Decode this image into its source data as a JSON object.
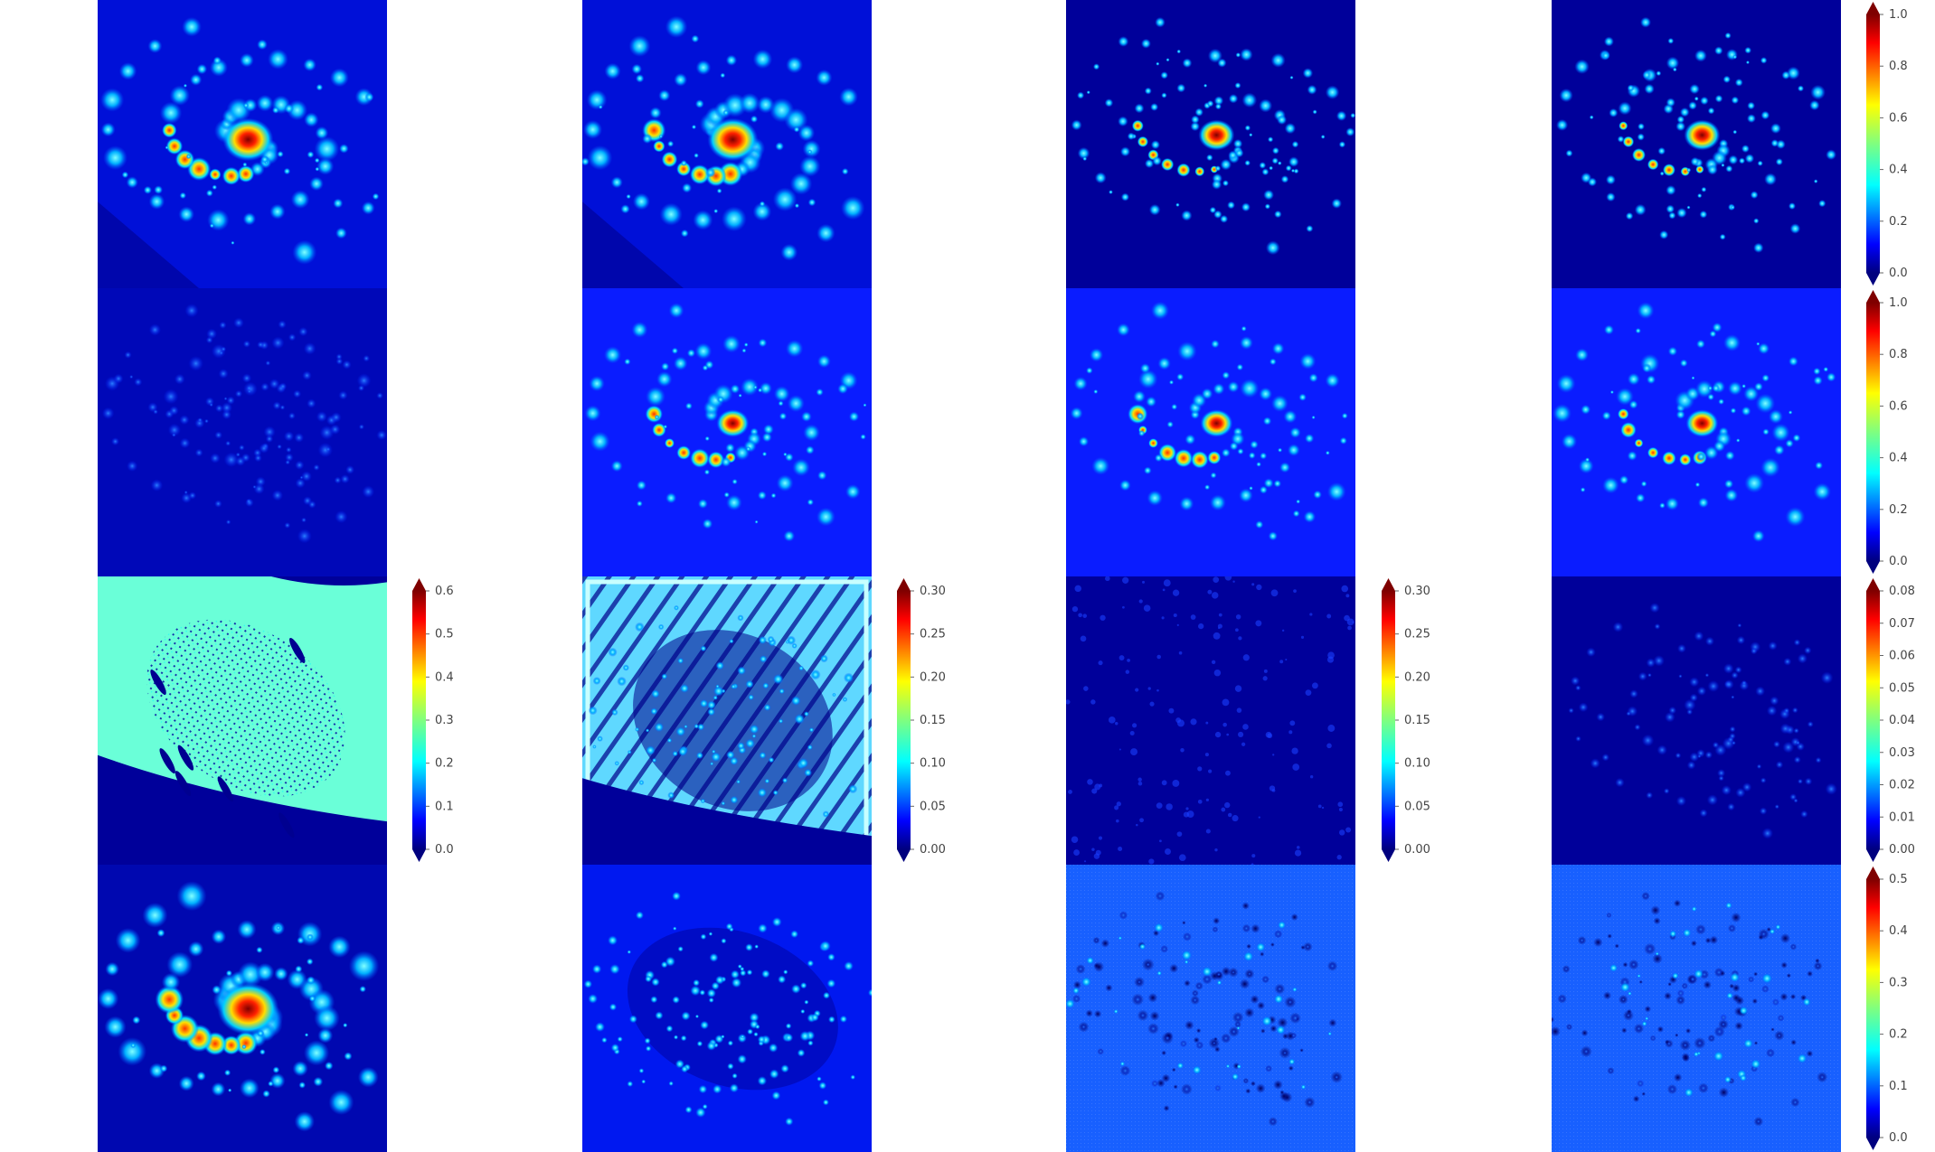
{
  "figure": {
    "rows": [
      {
        "panels": [
          "spiral-galaxy",
          "spiral-galaxy",
          "spiral-galaxy-sharp",
          "spiral-galaxy-sharp"
        ],
        "colorbars": [
          {
            "col": 3,
            "ticks": [
              "0.0",
              "0.2",
              "0.4",
              "0.6",
              "0.8",
              "1.0"
            ]
          }
        ]
      },
      {
        "panels": [
          "spiral-galaxy-faint",
          "spiral-galaxy-bright-bg",
          "spiral-galaxy-bright-bg",
          "spiral-galaxy-bright-bg"
        ],
        "colorbars": [
          {
            "col": 3,
            "ticks": [
              "0.0",
              "0.2",
              "0.4",
              "0.6",
              "0.8",
              "1.0"
            ]
          }
        ]
      },
      {
        "panels": [
          "error-map-cyan",
          "error-map-striped",
          "error-map-dark",
          "error-map-spiral-dark"
        ],
        "colorbars": [
          {
            "col": 0,
            "ticks": [
              "0.0",
              "0.1",
              "0.2",
              "0.3",
              "0.4",
              "0.5",
              "0.6"
            ]
          },
          {
            "col": 1,
            "ticks": [
              "0.00",
              "0.05",
              "0.10",
              "0.15",
              "0.20",
              "0.25",
              "0.30"
            ]
          },
          {
            "col": 2,
            "ticks": [
              "0.00",
              "0.05",
              "0.10",
              "0.15",
              "0.20",
              "0.25",
              "0.30"
            ]
          },
          {
            "col": 3,
            "ticks": [
              "0.00",
              "0.01",
              "0.02",
              "0.03",
              "0.04",
              "0.05",
              "0.06",
              "0.07",
              "0.08"
            ]
          }
        ]
      },
      {
        "panels": [
          "spiral-galaxy-saturated",
          "spiral-residual-blue",
          "spiral-residual-light",
          "spiral-residual-light"
        ],
        "colorbars": [
          {
            "col": 3,
            "ticks": [
              "0.0",
              "0.1",
              "0.2",
              "0.3",
              "0.4",
              "0.5"
            ]
          }
        ]
      }
    ],
    "colormap": [
      "#00007f",
      "#0000ff",
      "#007fff",
      "#00ffff",
      "#7fff7f",
      "#ffff00",
      "#ff7f00",
      "#ff0000",
      "#7f0000"
    ]
  }
}
